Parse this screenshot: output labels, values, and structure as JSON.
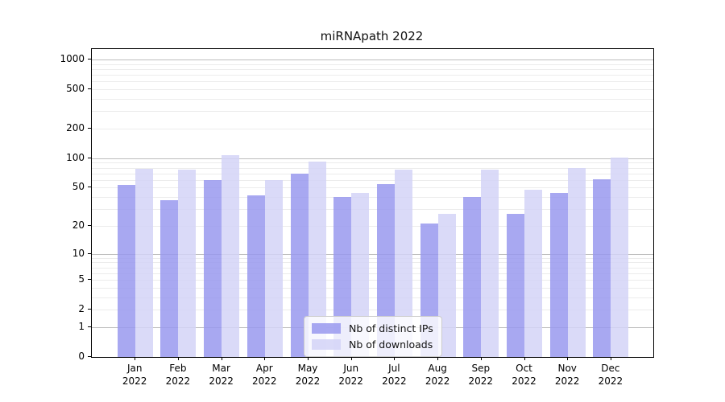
{
  "chart_data": {
    "type": "bar",
    "title": "miRNApath 2022",
    "categories": [
      "Jan 2022",
      "Feb 2022",
      "Mar 2022",
      "Apr 2022",
      "May 2022",
      "Jun 2022",
      "Jul 2022",
      "Aug 2022",
      "Sep 2022",
      "Oct 2022",
      "Nov 2022",
      "Dec 2022"
    ],
    "category_months": [
      "Jan",
      "Feb",
      "Mar",
      "Apr",
      "May",
      "Jun",
      "Jul",
      "Aug",
      "Sep",
      "Oct",
      "Nov",
      "Dec"
    ],
    "category_year": "2022",
    "series": [
      {
        "name": "Nb of distinct IPs",
        "color": "rgba(153,153,238,0.85)",
        "values": [
          53,
          37,
          60,
          42,
          70,
          40,
          54,
          21,
          40,
          27,
          44,
          61
        ]
      },
      {
        "name": "Nb of downloads",
        "color": "rgba(211,211,247,0.85)",
        "values": [
          78,
          77,
          108,
          60,
          92,
          44,
          76,
          27,
          76,
          48,
          80,
          102
        ]
      }
    ],
    "xlabel": "",
    "ylabel": "",
    "yscale": "log(x+1)",
    "ylim": [
      0,
      1270
    ],
    "yticks_labeled": [
      0,
      1,
      2,
      5,
      10,
      20,
      50,
      100,
      200,
      500,
      1000
    ],
    "yticks_major_grid": [
      1,
      10,
      100,
      1000
    ],
    "grid": "on",
    "legend_position": "lower-center-inside",
    "colors": {
      "major_grid": "#bdbdbd",
      "minor_grid": "#ececec",
      "axis": "#000000",
      "legend_border": "#cccccc"
    }
  }
}
